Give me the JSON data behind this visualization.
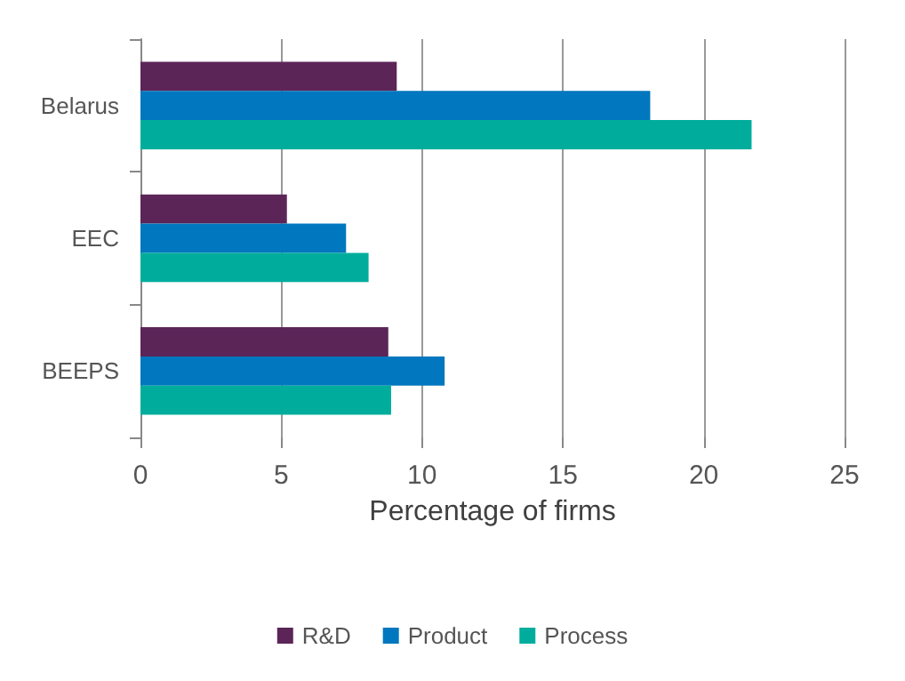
{
  "chart_data": {
    "type": "bar",
    "orientation": "horizontal",
    "xlabel": "Percentage of firms",
    "categories": [
      "Belarus",
      "EEC",
      "BEEPS"
    ],
    "series": [
      {
        "name": "R&D",
        "color": "#5c2558",
        "values": [
          9.1,
          5.2,
          8.8
        ]
      },
      {
        "name": "Product",
        "color": "#0077be",
        "values": [
          18.1,
          7.3,
          10.8
        ]
      },
      {
        "name": "Process",
        "color": "#00ad9c",
        "values": [
          21.7,
          8.1,
          8.9
        ]
      }
    ],
    "xlim": [
      0,
      25
    ],
    "xticks": [
      0,
      5,
      10,
      15,
      20,
      25
    ],
    "grid": "x",
    "legend": "bottom"
  }
}
